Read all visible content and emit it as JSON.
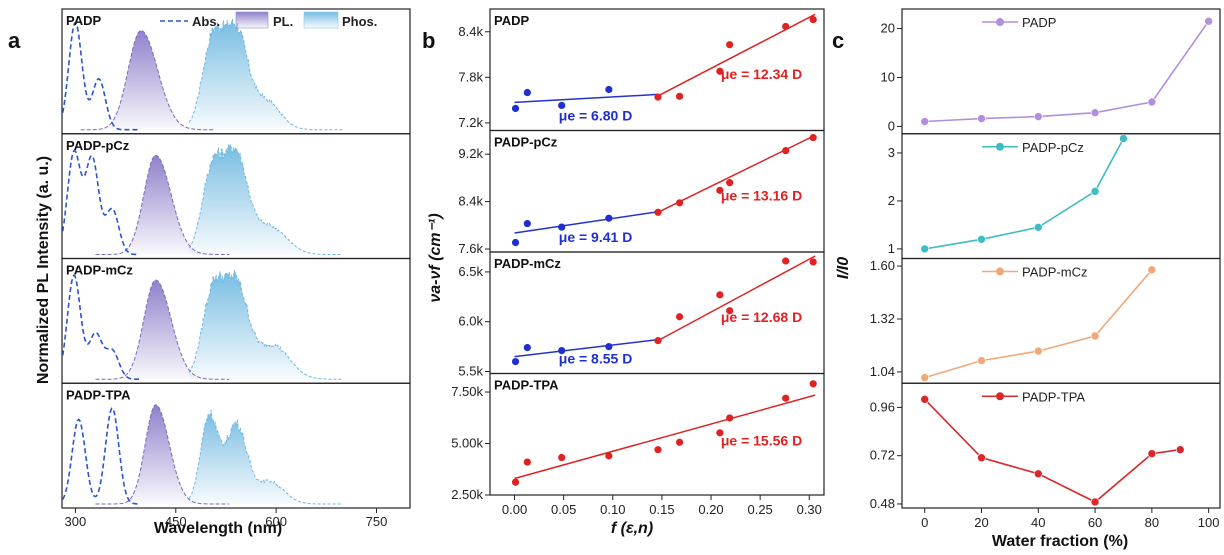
{
  "panel_letters": [
    "a",
    "b",
    "c"
  ],
  "chart_data": [
    {
      "type": "area",
      "panel": "a",
      "xlabel": "Wavelength (nm)",
      "ylabel": "Normalized PL Intensity (a. u.)",
      "xlim": [
        280,
        800
      ],
      "x_ticks": [
        300,
        450,
        600,
        750
      ],
      "legend": [
        "Abs.",
        "PL.",
        "Phos."
      ],
      "colors": {
        "abs": "#2a55d0",
        "pl": "#8a7ac8",
        "phos": "#6fb8e0"
      },
      "series": [
        {
          "name": "PADP",
          "abs_peaks": [
            [
              300,
              0.95
            ],
            [
              335,
              0.45
            ]
          ],
          "pl": {
            "peak": 398,
            "width": 27
          },
          "phos": [
            [
              505,
              0.78,
              22
            ],
            [
              540,
              0.85,
              24
            ],
            [
              585,
              0.25,
              30
            ]
          ]
        },
        {
          "name": "PADP-pCz",
          "abs_peaks": [
            [
              298,
              0.9
            ],
            [
              325,
              0.85
            ],
            [
              355,
              0.4
            ]
          ],
          "pl": {
            "peak": 420,
            "width": 25
          },
          "phos": [
            [
              505,
              0.75,
              22
            ],
            [
              540,
              0.85,
              24
            ],
            [
              590,
              0.25,
              35
            ]
          ]
        },
        {
          "name": "PADP-mCz",
          "abs_peaks": [
            [
              298,
              0.92
            ],
            [
              330,
              0.4
            ],
            [
              355,
              0.25
            ]
          ],
          "pl": {
            "peak": 420,
            "width": 25
          },
          "phos": [
            [
              505,
              0.75,
              22
            ],
            [
              540,
              0.82,
              25
            ],
            [
              595,
              0.3,
              35
            ]
          ]
        },
        {
          "name": "PADP-TPA",
          "abs_peaks": [
            [
              305,
              0.75
            ],
            [
              355,
              0.85
            ]
          ],
          "pl": {
            "peak": 420,
            "width": 22
          },
          "phos": [
            [
              500,
              0.78,
              18
            ],
            [
              540,
              0.7,
              22
            ],
            [
              590,
              0.2,
              30
            ]
          ]
        }
      ]
    },
    {
      "type": "scatter",
      "panel": "b",
      "xlabel": "f (ε,n)",
      "ylabel": "νa-νf (cm⁻¹)",
      "xlim": [
        -0.025,
        0.315
      ],
      "x_ticks": [
        "0.00",
        "0.05",
        "0.10",
        "0.15",
        "0.20",
        "0.25",
        "0.30"
      ],
      "series": [
        {
          "name": "PADP",
          "ylim": [
            7100,
            8700
          ],
          "y_ticks": [
            7200,
            7800,
            8400
          ],
          "y_tick_labels": [
            "7.2k",
            "7.8k",
            "8.4k"
          ],
          "blue_points": [
            [
              0.001,
              7390
            ],
            [
              0.013,
              7600
            ],
            [
              0.048,
              7430
            ],
            [
              0.096,
              7640
            ]
          ],
          "red_points": [
            [
              0.146,
              7540
            ],
            [
              0.168,
              7550
            ],
            [
              0.209,
              7880
            ],
            [
              0.219,
              8230
            ],
            [
              0.276,
              8470
            ],
            [
              0.304,
              8560
            ]
          ],
          "blue_fit": [
            [
              0.0,
              7470
            ],
            [
              0.146,
              7575
            ]
          ],
          "red_fit": [
            [
              0.146,
              7555
            ],
            [
              0.306,
              8630
            ]
          ],
          "mu_blue": "μe = 6.80 D",
          "mu_red": "μe = 12.34 D"
        },
        {
          "name": "PADP-pCz",
          "ylim": [
            7550,
            9600
          ],
          "y_ticks": [
            7600,
            8400,
            9200
          ],
          "y_tick_labels": [
            "7.6k",
            "8.4k",
            "9.2k"
          ],
          "blue_points": [
            [
              0.001,
              7710
            ],
            [
              0.013,
              8030
            ],
            [
              0.048,
              7970
            ],
            [
              0.096,
              8120
            ]
          ],
          "red_points": [
            [
              0.146,
              8220
            ],
            [
              0.168,
              8380
            ],
            [
              0.209,
              8590
            ],
            [
              0.219,
              8720
            ],
            [
              0.276,
              9260
            ],
            [
              0.304,
              9480
            ]
          ],
          "blue_fit": [
            [
              0.0,
              7870
            ],
            [
              0.146,
              8230
            ]
          ],
          "red_fit": [
            [
              0.146,
              8220
            ],
            [
              0.306,
              9520
            ]
          ],
          "mu_blue": "μe = 9.41 D",
          "mu_red": "μe = 13.16 D"
        },
        {
          "name": "PADP-mCz",
          "ylim": [
            5480,
            6700
          ],
          "y_ticks": [
            5500,
            6000,
            6500
          ],
          "y_tick_labels": [
            "5.5k",
            "6.0k",
            "6.5k"
          ],
          "blue_points": [
            [
              0.001,
              5600
            ],
            [
              0.013,
              5740
            ],
            [
              0.048,
              5710
            ],
            [
              0.096,
              5750
            ]
          ],
          "red_points": [
            [
              0.146,
              5810
            ],
            [
              0.168,
              6050
            ],
            [
              0.209,
              6270
            ],
            [
              0.219,
              6110
            ],
            [
              0.276,
              6610
            ],
            [
              0.304,
              6600
            ]
          ],
          "blue_fit": [
            [
              0.0,
              5650
            ],
            [
              0.146,
              5820
            ]
          ],
          "red_fit": [
            [
              0.146,
              5810
            ],
            [
              0.306,
              6660
            ]
          ],
          "mu_blue": "μe = 8.55 D",
          "mu_red": "μe = 12.68 D"
        },
        {
          "name": "PADP-TPA",
          "ylim": [
            2500,
            8400
          ],
          "y_ticks": [
            2500,
            5000,
            7500
          ],
          "y_tick_labels": [
            "2.50k",
            "5.00k",
            "7.50k"
          ],
          "red_points": [
            [
              0.001,
              3120
            ],
            [
              0.013,
              4100
            ],
            [
              0.048,
              4320
            ],
            [
              0.096,
              4400
            ],
            [
              0.146,
              4700
            ],
            [
              0.168,
              5060
            ],
            [
              0.209,
              5520
            ],
            [
              0.219,
              6240
            ],
            [
              0.276,
              7200
            ],
            [
              0.304,
              7900
            ]
          ],
          "red_fit": [
            [
              0.0,
              3300
            ],
            [
              0.306,
              7350
            ]
          ],
          "mu_red": "μe = 15.56 D"
        }
      ]
    },
    {
      "type": "line",
      "panel": "c",
      "xlabel": "Water fraction (%)",
      "ylabel": "I/I0",
      "xlim": [
        -8,
        104
      ],
      "x_ticks": [
        0,
        20,
        40,
        60,
        80,
        100
      ],
      "series": [
        {
          "name": "PADP",
          "color": "#b28fdc",
          "x": [
            0,
            20,
            40,
            60,
            80,
            100
          ],
          "y": [
            1.0,
            1.6,
            2.0,
            2.8,
            5.0,
            21.5
          ],
          "ylim": [
            -1.5,
            24
          ],
          "y_ticks": [
            0,
            10,
            20
          ],
          "y_tick_labels": [
            "0",
            "10",
            "20"
          ]
        },
        {
          "name": "PADP-pCz",
          "color": "#3ebcc4",
          "x": [
            0,
            20,
            40,
            60,
            70
          ],
          "y": [
            1.0,
            1.2,
            1.45,
            2.2,
            3.3
          ],
          "ylim": [
            0.8,
            3.4
          ],
          "y_ticks": [
            1,
            2,
            3
          ],
          "y_tick_labels": [
            "1",
            "2",
            "3"
          ]
        },
        {
          "name": "PADP-mCz",
          "color": "#f0a878",
          "x": [
            0,
            20,
            40,
            60,
            80
          ],
          "y": [
            1.01,
            1.1,
            1.15,
            1.23,
            1.58
          ],
          "ylim": [
            0.98,
            1.64
          ],
          "y_ticks": [
            1.04,
            1.32,
            1.6
          ],
          "y_tick_labels": [
            "1.04",
            "1.32",
            "1.60"
          ]
        },
        {
          "name": "PADP-TPA",
          "color": "#d8282a",
          "x": [
            0,
            20,
            40,
            60,
            80,
            90
          ],
          "y": [
            1.0,
            0.71,
            0.63,
            0.49,
            0.73,
            0.75
          ],
          "ylim": [
            0.46,
            1.08
          ],
          "y_ticks": [
            0.48,
            0.72,
            0.96
          ],
          "y_tick_labels": [
            "0.48",
            "0.72",
            "0.96"
          ]
        }
      ]
    }
  ]
}
